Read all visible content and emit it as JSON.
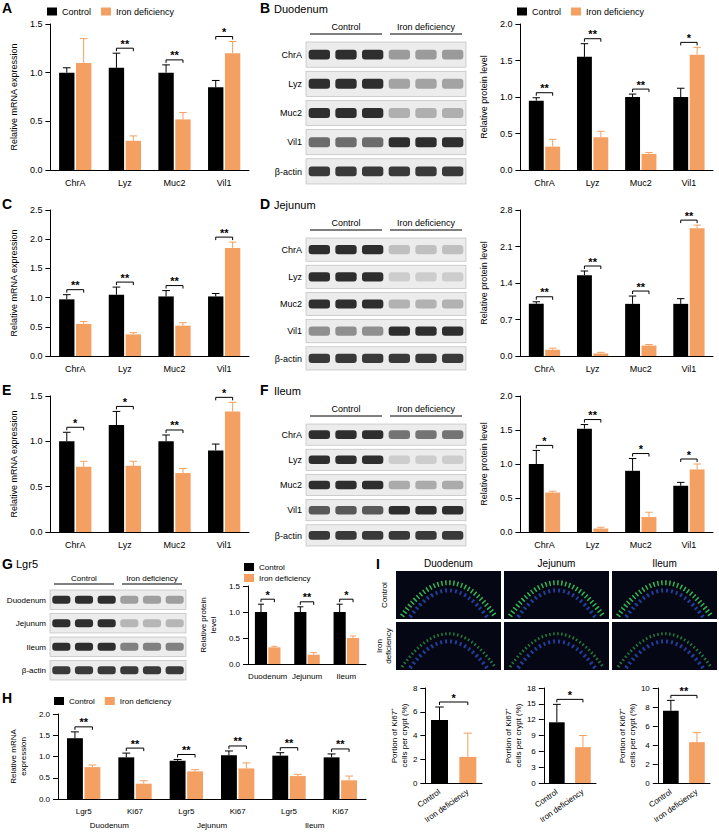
{
  "chart_data": [
    {
      "panel": "A",
      "type": "bar",
      "categories": [
        "ChrA",
        "Lyz",
        "Muc2",
        "Vil1"
      ],
      "ylabel": "Relative mRNA expression",
      "ylim": [
        0,
        1.5
      ],
      "yticks": [
        {
          "value": 0,
          "label": "0.0"
        },
        0.5,
        {
          "value": 1,
          "label": "1.0"
        },
        1.5
      ],
      "grid": false,
      "legend": "top",
      "series": [
        {
          "name": "Control",
          "color": "#000000",
          "values": [
            1.0,
            1.05,
            1.0,
            0.85
          ],
          "errors": [
            0.05,
            0.15,
            0.08,
            0.07
          ]
        },
        {
          "name": "Iron deficiency",
          "color": "#f4a062",
          "values": [
            1.1,
            0.3,
            0.52,
            1.2
          ],
          "errors": [
            0.25,
            0.05,
            0.07,
            0.12
          ]
        }
      ],
      "annotations": [
        null,
        "**",
        "**",
        "*"
      ]
    },
    {
      "panel": "B",
      "type": "bar",
      "categories": [
        "ChrA",
        "Lyz",
        "Muc2",
        "Vil1"
      ],
      "ylabel": "Relative protein level",
      "ylim": [
        0,
        2
      ],
      "yticks": [
        {
          "value": 0,
          "label": "0.0"
        },
        0.5,
        {
          "value": 1,
          "label": "1.0"
        },
        1.5,
        {
          "value": 2,
          "label": "2.0"
        }
      ],
      "grid": false,
      "legend": "top",
      "series": [
        {
          "name": "Control",
          "color": "#000000",
          "values": [
            0.95,
            1.55,
            1.0,
            1.0
          ],
          "errors": [
            0.04,
            0.18,
            0.04,
            0.12
          ]
        },
        {
          "name": "Iron deficiency",
          "color": "#f4a062",
          "values": [
            0.32,
            0.45,
            0.22,
            1.58
          ],
          "errors": [
            0.1,
            0.08,
            0.02,
            0.1
          ]
        }
      ],
      "annotations": [
        "**",
        "**",
        "**",
        "*"
      ]
    },
    {
      "panel": "C",
      "type": "bar",
      "categories": [
        "ChrA",
        "Lyz",
        "Muc2",
        "Vil1"
      ],
      "ylabel": "Relative mRNA expression",
      "ylim": [
        0,
        2.5
      ],
      "yticks": [
        {
          "value": 0,
          "label": "0.0"
        },
        0.5,
        {
          "value": 1,
          "label": "1.0"
        },
        1.5,
        {
          "value": 2,
          "label": "2.0"
        },
        2.5
      ],
      "grid": false,
      "series": [
        {
          "name": "Control",
          "color": "#000000",
          "values": [
            0.97,
            1.05,
            1.02,
            1.02
          ],
          "errors": [
            0.08,
            0.13,
            0.1,
            0.05
          ]
        },
        {
          "name": "Iron deficiency",
          "color": "#f4a062",
          "values": [
            0.55,
            0.37,
            0.52,
            1.85
          ],
          "errors": [
            0.04,
            0.03,
            0.05,
            0.1
          ]
        }
      ],
      "annotations": [
        "**",
        "**",
        "**",
        "**"
      ]
    },
    {
      "panel": "D",
      "type": "bar",
      "categories": [
        "ChrA",
        "Lyz",
        "Muc2",
        "Vil1"
      ],
      "ylabel": "Relative protein level",
      "ylim": [
        0,
        2.8
      ],
      "yticks": [
        {
          "value": 0,
          "label": "0.0"
        },
        0.7,
        1.4,
        2.1,
        2.8
      ],
      "grid": false,
      "series": [
        {
          "name": "Control",
          "color": "#000000",
          "values": [
            1.0,
            1.55,
            1.0,
            1.0
          ],
          "errors": [
            0.04,
            0.08,
            0.15,
            0.1
          ]
        },
        {
          "name": "Iron deficiency",
          "color": "#f4a062",
          "values": [
            0.12,
            0.05,
            0.2,
            2.45
          ],
          "errors": [
            0.03,
            0.02,
            0.02,
            0.06
          ]
        }
      ],
      "annotations": [
        "**",
        "**",
        "**",
        "**"
      ]
    },
    {
      "panel": "E",
      "type": "bar",
      "categories": [
        "ChrA",
        "Lyz",
        "Muc2",
        "Vil1"
      ],
      "ylabel": "Relative mRNA expression",
      "ylim": [
        0,
        1.5
      ],
      "yticks": [
        {
          "value": 0,
          "label": "0.0"
        },
        0.5,
        {
          "value": 1,
          "label": "1.0"
        },
        1.5
      ],
      "grid": false,
      "series": [
        {
          "name": "Control",
          "color": "#000000",
          "values": [
            1.0,
            1.18,
            1.0,
            0.9
          ],
          "errors": [
            0.1,
            0.15,
            0.07,
            0.07
          ]
        },
        {
          "name": "Iron deficiency",
          "color": "#f4a062",
          "values": [
            0.72,
            0.73,
            0.65,
            1.33
          ],
          "errors": [
            0.06,
            0.05,
            0.05,
            0.1
          ]
        }
      ],
      "annotations": [
        "*",
        "*",
        "**",
        "*"
      ]
    },
    {
      "panel": "F",
      "type": "bar",
      "categories": [
        "ChrA",
        "Lyz",
        "Muc2",
        "Vil1"
      ],
      "ylabel": "Relative protein level",
      "ylim": [
        0,
        2
      ],
      "yticks": [
        {
          "value": 0,
          "label": "0.0"
        },
        0.5,
        {
          "value": 1,
          "label": "1.0"
        },
        1.5,
        {
          "value": 2,
          "label": "2.0"
        }
      ],
      "grid": false,
      "series": [
        {
          "name": "Control",
          "color": "#000000",
          "values": [
            1.0,
            1.52,
            0.9,
            0.68
          ],
          "errors": [
            0.2,
            0.06,
            0.18,
            0.05
          ]
        },
        {
          "name": "Iron deficiency",
          "color": "#f4a062",
          "values": [
            0.58,
            0.05,
            0.22,
            0.92
          ],
          "errors": [
            0.02,
            0.02,
            0.07,
            0.08
          ]
        }
      ],
      "annotations": [
        "*",
        "**",
        "*",
        "*"
      ]
    },
    {
      "panel": "G",
      "type": "bar",
      "categories": [
        "Duodenum",
        "Jejunum",
        "Ileum"
      ],
      "ylabel": "Relative protein level",
      "ylim": [
        0,
        1.5
      ],
      "yticks": [
        {
          "value": 0,
          "label": "0.0"
        },
        0.5,
        {
          "value": 1,
          "label": "1.0"
        },
        1.5
      ],
      "grid": false,
      "legend": "top",
      "series": [
        {
          "name": "Control",
          "color": "#000000",
          "values": [
            1.0,
            1.0,
            1.0
          ],
          "errors": [
            0.15,
            0.1,
            0.15
          ]
        },
        {
          "name": "Iron deficiency",
          "color": "#f4a062",
          "values": [
            0.32,
            0.18,
            0.5
          ],
          "errors": [
            0.02,
            0.04,
            0.04
          ]
        }
      ],
      "annotations": [
        "*",
        "**",
        "*"
      ]
    },
    {
      "panel": "H",
      "type": "bar",
      "categories": [
        "Lgr5",
        "Ki67",
        "Lgr5",
        "Ki67",
        "Lgr5",
        "Ki67"
      ],
      "groups": [
        "Duodenum",
        "Jejunum",
        "Ileum"
      ],
      "ylabel": "Relative mRNA expression",
      "ylim": [
        0,
        2
      ],
      "yticks": [
        {
          "value": 0,
          "label": "0.0"
        },
        0.5,
        {
          "value": 1,
          "label": "1.0"
        },
        1.5,
        {
          "value": 2,
          "label": "2.0"
        }
      ],
      "grid": false,
      "legend": "top",
      "series": [
        {
          "name": "Control",
          "color": "#000000",
          "values": [
            1.43,
            0.98,
            0.9,
            1.03,
            1.02,
            0.98
          ],
          "errors": [
            0.15,
            0.1,
            0.03,
            0.1,
            0.07,
            0.08
          ]
        },
        {
          "name": "Iron deficiency",
          "color": "#f4a062",
          "values": [
            0.75,
            0.36,
            0.65,
            0.72,
            0.54,
            0.44
          ],
          "errors": [
            0.05,
            0.07,
            0.04,
            0.13,
            0.04,
            0.1
          ]
        }
      ],
      "annotations": [
        "**",
        "**",
        "**",
        "**",
        "**",
        "**"
      ]
    },
    {
      "type": "bar",
      "categories": [
        "Control",
        "Iron deficiency"
      ],
      "ylabel": "Portion of Ki67⁺ cells per crypt (%)",
      "ylim": [
        0,
        8
      ],
      "yticks": [
        0,
        2,
        4,
        6,
        8
      ],
      "grid": false,
      "values": [
        5.3,
        2.2
      ],
      "errors": [
        1.1,
        2.0
      ],
      "colors": [
        "#000000",
        "#f4a062"
      ],
      "annotation": "*"
    },
    {
      "type": "bar",
      "categories": [
        "Control",
        "Iron deficiency"
      ],
      "ylabel": "Portion of Ki67⁺ cells per crypt (%)",
      "ylim": [
        0,
        18
      ],
      "yticks": [
        0,
        3,
        6,
        9,
        12,
        15,
        18
      ],
      "grid": false,
      "values": [
        11.5,
        6.8
      ],
      "errors": [
        3.4,
        2.2
      ],
      "colors": [
        "#000000",
        "#f4a062"
      ],
      "annotation": "*"
    },
    {
      "type": "bar",
      "categories": [
        "Control",
        "Iron deficiency"
      ],
      "ylabel": "Portion of Ki67⁺ cells per crypt (%)",
      "ylim": [
        0,
        10
      ],
      "yticks": [
        0,
        2,
        4,
        6,
        8,
        10
      ],
      "grid": false,
      "values": [
        7.6,
        4.3
      ],
      "errors": [
        1.1,
        1.0
      ],
      "colors": [
        "#000000",
        "#f4a062"
      ],
      "annotation": "**"
    }
  ],
  "blots": [
    {
      "title": "Duodenum",
      "groups": [
        "Control",
        "Iron deficiency"
      ],
      "rows": [
        "ChrA",
        "Lyz",
        "Muc2",
        "Vil1",
        "β-actin"
      ]
    },
    {
      "title": "Jejunum",
      "groups": [
        "Control",
        "Iron deficiency"
      ],
      "rows": [
        "ChrA",
        "Lyz",
        "Muc2",
        "Vil1",
        "β-actin"
      ]
    },
    {
      "title": "Ileum",
      "groups": [
        "Control",
        "Iron deficiency"
      ],
      "rows": [
        "ChrA",
        "Lyz",
        "Muc2",
        "Vil1",
        "β-actin"
      ]
    },
    {
      "title": "Lgr5",
      "groups": [
        "Control",
        "Iron deficiency"
      ],
      "rows": [
        "Duodenum",
        "Jejunum",
        "Ileum",
        "β-actin"
      ]
    }
  ],
  "images": {
    "panel": "I",
    "columns": [
      "Duodenum",
      "Jejunum",
      "Ileum"
    ],
    "rows": [
      "Control",
      "Iron deficiency"
    ]
  }
}
